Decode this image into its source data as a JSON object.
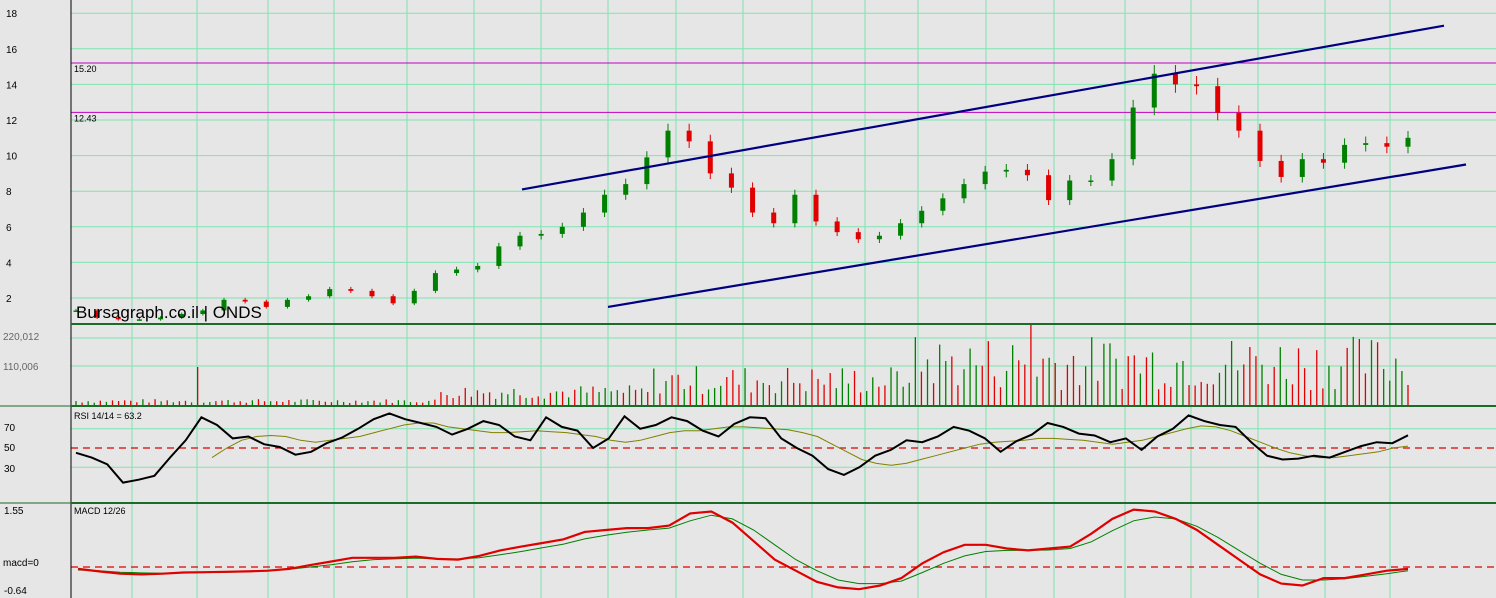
{
  "watermark": "Bursagraph.co.il | ONDS",
  "chart_data": [
    {
      "type": "candlestick",
      "panel": "price",
      "ylim": [
        0,
        18
      ],
      "y_ticks": [
        "2",
        "4",
        "6",
        "8",
        "10",
        "12",
        "14",
        "16",
        "18"
      ],
      "grid": true,
      "close_series": [
        1.3,
        0.9,
        0.8,
        0.8,
        0.9,
        1.1,
        1.3,
        1.9,
        1.8,
        1.5,
        1.9,
        2.1,
        2.5,
        2.4,
        2.1,
        1.7,
        2.4,
        3.4,
        3.6,
        3.8,
        4.9,
        5.5,
        5.6,
        6.0,
        6.8,
        7.8,
        8.4,
        9.9,
        11.4,
        10.8,
        9.0,
        8.2,
        6.8,
        6.2,
        7.8,
        6.3,
        5.7,
        5.3,
        5.5,
        6.2,
        6.9,
        7.6,
        8.4,
        9.1,
        9.2,
        8.9,
        7.5,
        8.6,
        8.6,
        9.8,
        12.7,
        14.6,
        14.0,
        13.9,
        12.4,
        11.4,
        9.7,
        8.8,
        9.8,
        9.6,
        10.6,
        10.7,
        10.5,
        11.0
      ],
      "horizontal_lines": [
        {
          "label": "15.20",
          "value": 15.2,
          "color": "#c000c0"
        },
        {
          "label": "12.43",
          "value": 12.43,
          "color": "#c000c0"
        }
      ],
      "trendlines": [
        {
          "name": "upper-channel",
          "from_value": 8.1,
          "to_value": 17.3,
          "color": "#000080"
        },
        {
          "name": "lower-channel",
          "from_value": 1.5,
          "to_value": 9.5,
          "color": "#000080"
        }
      ],
      "up_color": "#008000",
      "down_color": "#e00000"
    },
    {
      "type": "bar",
      "panel": "volume",
      "y_ticks": [
        "220,012",
        "110,006"
      ],
      "ylim": [
        0,
        220012
      ],
      "up_color": "#008000",
      "down_color": "#e00000"
    },
    {
      "type": "line",
      "panel": "rsi",
      "title": "RSI 14/14 = 63.2",
      "ylim": [
        0,
        100
      ],
      "y_ticks": [
        "70",
        "50",
        "30"
      ],
      "reference_line": 50,
      "series": [
        {
          "values": [
            45,
            40,
            33,
            14,
            17,
            21,
            40,
            58,
            82,
            74,
            60,
            62,
            54,
            51,
            43,
            46,
            55,
            61,
            70,
            80,
            86,
            80,
            76,
            72,
            64,
            70,
            78,
            74,
            62,
            58,
            82,
            72,
            68,
            50,
            60,
            83,
            70,
            74,
            82,
            78,
            68,
            62,
            75,
            82,
            81,
            60,
            50,
            42,
            28,
            22,
            30,
            42,
            48,
            58,
            56,
            62,
            72,
            68,
            60,
            46,
            57,
            64,
            76,
            72,
            65,
            63,
            56,
            60,
            48,
            62,
            70,
            84,
            78,
            74,
            72,
            56,
            42,
            38,
            39,
            42,
            40,
            46,
            52,
            56,
            55,
            63.2
          ],
          "color": "#000000"
        },
        {
          "values": [
            40,
            50,
            58,
            62,
            63,
            62,
            58,
            56,
            58,
            60,
            62,
            66,
            70,
            74,
            76,
            76,
            72,
            70,
            68,
            66,
            66,
            67,
            68,
            67,
            66,
            64,
            62,
            58,
            56,
            58,
            62,
            66,
            68,
            68,
            70,
            72,
            72,
            71,
            70,
            69,
            66,
            62,
            54,
            46,
            38,
            34,
            32,
            34,
            38,
            42,
            46,
            50,
            54,
            56,
            57,
            58,
            60,
            60,
            59,
            58,
            56,
            54,
            56,
            58,
            62,
            66,
            70,
            73,
            72,
            68,
            62,
            56,
            50,
            45,
            42,
            40,
            40,
            42,
            44,
            46,
            50,
            52
          ],
          "color": "#808000"
        }
      ]
    },
    {
      "type": "line",
      "panel": "macd",
      "title": "MACD 12/26",
      "y_ticks": [
        "1.55",
        "macd=0",
        "-0.64"
      ],
      "ylim": [
        -0.64,
        1.55
      ],
      "reference_line": 0,
      "series": [
        {
          "values": [
            -0.05,
            -0.12,
            -0.18,
            -0.2,
            -0.18,
            -0.15,
            -0.14,
            -0.13,
            -0.12,
            -0.1,
            -0.05,
            0.05,
            0.15,
            0.25,
            0.25,
            0.25,
            0.28,
            0.22,
            0.2,
            0.3,
            0.45,
            0.55,
            0.65,
            0.75,
            0.95,
            1.0,
            1.05,
            1.05,
            1.12,
            1.45,
            1.5,
            1.2,
            0.7,
            0.2,
            -0.1,
            -0.4,
            -0.55,
            -0.6,
            -0.5,
            -0.3,
            0.1,
            0.4,
            0.6,
            0.6,
            0.5,
            0.45,
            0.5,
            0.55,
            0.9,
            1.3,
            1.55,
            1.5,
            1.3,
            1.0,
            0.6,
            0.2,
            -0.2,
            -0.45,
            -0.5,
            -0.3,
            -0.3,
            -0.2,
            -0.1,
            -0.05
          ],
          "color": "#e00000"
        },
        {
          "values": [
            -0.08,
            -0.1,
            -0.14,
            -0.16,
            -0.17,
            -0.16,
            -0.15,
            -0.14,
            -0.13,
            -0.1,
            -0.06,
            0.0,
            0.06,
            0.14,
            0.2,
            0.22,
            0.24,
            0.22,
            0.22,
            0.25,
            0.33,
            0.42,
            0.52,
            0.62,
            0.76,
            0.86,
            0.94,
            1.0,
            1.05,
            1.25,
            1.4,
            1.3,
            1.0,
            0.6,
            0.2,
            -0.1,
            -0.35,
            -0.45,
            -0.45,
            -0.38,
            -0.15,
            0.1,
            0.3,
            0.42,
            0.45,
            0.45,
            0.46,
            0.5,
            0.68,
            0.98,
            1.25,
            1.35,
            1.3,
            1.1,
            0.8,
            0.45,
            0.1,
            -0.2,
            -0.35,
            -0.35,
            -0.32,
            -0.25,
            -0.18,
            -0.1
          ],
          "color": "#008000"
        }
      ]
    }
  ]
}
